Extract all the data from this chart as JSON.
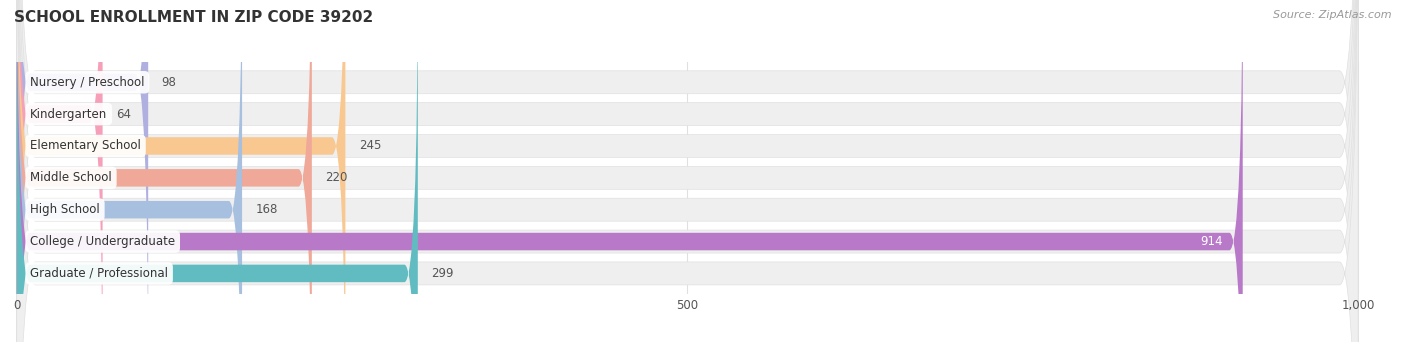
{
  "title": "SCHOOL ENROLLMENT IN ZIP CODE 39202",
  "source": "Source: ZipAtlas.com",
  "categories": [
    "Nursery / Preschool",
    "Kindergarten",
    "Elementary School",
    "Middle School",
    "High School",
    "College / Undergraduate",
    "Graduate / Professional"
  ],
  "values": [
    98,
    64,
    245,
    220,
    168,
    914,
    299
  ],
  "bar_colors": [
    "#b0b0e0",
    "#f5a0b8",
    "#f8c890",
    "#f0a898",
    "#a8c0e0",
    "#b87ac8",
    "#60bcc0"
  ],
  "bar_bg_color": "#efefef",
  "bar_bg_border": "#e0e0e0",
  "xlim_max": 1000,
  "xticks": [
    0,
    500,
    1000
  ],
  "title_fontsize": 11,
  "label_fontsize": 8.5,
  "value_fontsize": 8.5,
  "source_fontsize": 8,
  "bg_color": "#ffffff",
  "grid_color": "#e0e0e0",
  "text_color": "#555555",
  "title_color": "#333333"
}
